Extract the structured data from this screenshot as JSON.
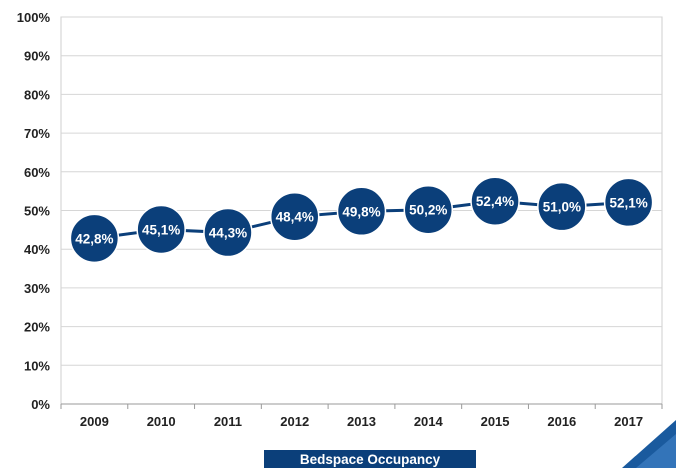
{
  "chart_data": {
    "type": "line",
    "categories": [
      "2009",
      "2010",
      "2011",
      "2012",
      "2013",
      "2014",
      "2015",
      "2016",
      "2017"
    ],
    "series": [
      {
        "name": "Bedspace Occupancy",
        "values": [
          42.8,
          45.1,
          44.3,
          48.4,
          49.8,
          50.2,
          52.4,
          51.0,
          52.1
        ],
        "labels": [
          "42,8%",
          "45,1%",
          "44,3%",
          "48,4%",
          "49,8%",
          "50,2%",
          "52,4%",
          "51,0%",
          "52,1%"
        ]
      }
    ],
    "y_ticks": [
      "0%",
      "10%",
      "20%",
      "30%",
      "40%",
      "50%",
      "60%",
      "70%",
      "80%",
      "90%",
      "100%"
    ],
    "ylim": [
      0,
      100
    ],
    "grid": true,
    "legend": "bottom-center",
    "colors": {
      "series": "#0b3f7a",
      "marker_text": "#ffffff",
      "grid": "#d6d6d6",
      "axis_text": "#222222"
    }
  }
}
